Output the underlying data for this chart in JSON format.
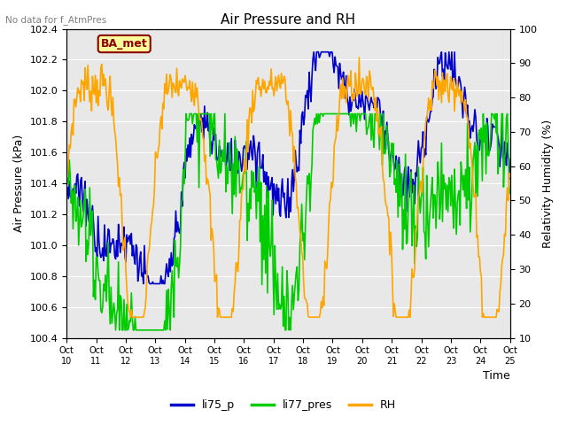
{
  "title": "Air Pressure and RH",
  "top_left_text": "No data for f_AtmPres",
  "legend_box_text": "BA_met",
  "xlabel": "Time",
  "ylabel_left": "Air Pressure (kPa)",
  "ylabel_right": "Relativity Humidity (%)",
  "ylim_left": [
    100.4,
    102.4
  ],
  "ylim_right": [
    10,
    100
  ],
  "yticks_left": [
    100.4,
    100.6,
    100.8,
    101.0,
    101.2,
    101.4,
    101.6,
    101.8,
    102.0,
    102.2,
    102.4
  ],
  "yticks_right": [
    10,
    20,
    30,
    40,
    50,
    60,
    70,
    80,
    90,
    100
  ],
  "xtick_labels": [
    "Oct 10",
    "Oct 11",
    "Oct 12",
    "Oct 13",
    "Oct 14",
    "Oct 15",
    "Oct 16",
    "Oct 17",
    "Oct 18",
    "Oct 19",
    "Oct 20",
    "Oct 21",
    "Oct 22",
    "Oct 23",
    "Oct 24",
    "Oct 25"
  ],
  "colors": {
    "li75_p": "#0000cc",
    "li77_pres": "#00cc00",
    "RH": "#ffa500",
    "background": "#e8e8e8",
    "legend_box_bg": "#ffff99",
    "legend_box_border": "#8b0000"
  },
  "legend_labels": [
    "li75_p",
    "li77_pres",
    "RH"
  ],
  "line_width": 1.2,
  "n_points": 480
}
